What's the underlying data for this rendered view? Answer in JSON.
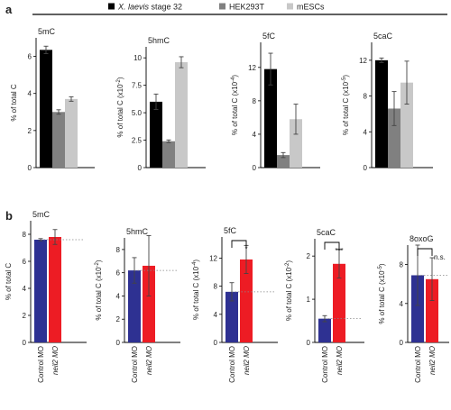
{
  "panel_labels": {
    "a": "a",
    "b": "b"
  },
  "legend": [
    {
      "parts": [
        {
          "t": "X. laevis",
          "italic": true
        },
        {
          "t": " stage 32",
          "italic": false
        }
      ],
      "color": "#000000"
    },
    {
      "parts": [
        {
          "t": "HEK293T",
          "italic": false
        }
      ],
      "color": "#808080"
    },
    {
      "parts": [
        {
          "t": "mESCs",
          "italic": false
        }
      ],
      "color": "#c8c8c8"
    }
  ],
  "chart_data": [
    {
      "type": "bar",
      "panel": "a",
      "title": "5mC",
      "ylabel": [
        {
          "t": "% of total C"
        }
      ],
      "categories": [
        "X. laevis stage 32",
        "HEK293T",
        "mESCs"
      ],
      "values": [
        6.35,
        3.0,
        3.7
      ],
      "errors": [
        0.2,
        0.12,
        0.12
      ],
      "colors": [
        "#000000",
        "#808080",
        "#c8c8c8"
      ],
      "ylim": [
        0,
        7
      ],
      "yticks": [
        0,
        2,
        4,
        6
      ],
      "ytick_labels": [
        "0",
        "2",
        "4",
        "6"
      ]
    },
    {
      "type": "bar",
      "panel": "a",
      "title": "5hmC",
      "ylabel": [
        {
          "t": "% of total C (x10"
        },
        {
          "t": "-2",
          "sup": true
        },
        {
          "t": ")"
        }
      ],
      "categories": [
        "X. laevis stage 32",
        "HEK293T",
        "mESCs"
      ],
      "values": [
        6.0,
        2.4,
        9.6
      ],
      "errors": [
        0.7,
        0.12,
        0.5
      ],
      "colors": [
        "#000000",
        "#808080",
        "#c8c8c8"
      ],
      "ylim": [
        0,
        11
      ],
      "yticks": [
        0,
        2.5,
        5,
        7.5,
        10
      ],
      "ytick_labels": [
        "0",
        "2.5",
        "5.0",
        "7.5",
        "10"
      ]
    },
    {
      "type": "bar",
      "panel": "a",
      "title": "5fC",
      "ylabel": [
        {
          "t": "% of total C (x10"
        },
        {
          "t": "-4",
          "sup": true
        },
        {
          "t": ")"
        }
      ],
      "categories": [
        "X. laevis stage 32",
        "HEK293T",
        "mESCs"
      ],
      "values": [
        11.8,
        1.5,
        5.8
      ],
      "errors": [
        1.9,
        0.3,
        1.8
      ],
      "colors": [
        "#000000",
        "#808080",
        "#c8c8c8"
      ],
      "ylim": [
        0,
        15
      ],
      "yticks": [
        0,
        4,
        8,
        12
      ],
      "ytick_labels": [
        "0",
        "4",
        "8",
        "12"
      ]
    },
    {
      "type": "bar",
      "panel": "a",
      "title": "5caC",
      "ylabel": [
        {
          "t": "% of total C (x10"
        },
        {
          "t": "-5",
          "sup": true
        },
        {
          "t": ")"
        }
      ],
      "categories": [
        "X. laevis stage 32",
        "HEK293T",
        "mESCs"
      ],
      "values": [
        12.0,
        6.6,
        9.5
      ],
      "errors": [
        0.25,
        1.9,
        2.4
      ],
      "colors": [
        "#000000",
        "#808080",
        "#c8c8c8"
      ],
      "ylim": [
        0,
        14
      ],
      "yticks": [
        0,
        4,
        8,
        12
      ],
      "ytick_labels": [
        "0",
        "4",
        "8",
        "12"
      ]
    },
    {
      "type": "bar",
      "panel": "b",
      "title": "5mC",
      "ylabel": [
        {
          "t": "% of total C"
        }
      ],
      "categories": [
        "Control MO",
        "neil2 MO"
      ],
      "category_italic": [
        false,
        true
      ],
      "values": [
        7.6,
        7.8
      ],
      "errors": [
        0.08,
        0.55
      ],
      "colors": [
        "#2e3192",
        "#ed1c24"
      ],
      "ylim": [
        0,
        9
      ],
      "yticks": [
        0,
        2,
        4,
        6,
        8
      ],
      "ytick_labels": [
        "0",
        "2",
        "4",
        "6",
        "8"
      ]
    },
    {
      "type": "bar",
      "panel": "b",
      "title": "5hmC",
      "ylabel": [
        {
          "t": "% of total C (x10"
        },
        {
          "t": "-2",
          "sup": true
        },
        {
          "t": ")"
        }
      ],
      "categories": [
        "Control MO",
        "neil2 MO"
      ],
      "category_italic": [
        false,
        true
      ],
      "values": [
        6.2,
        6.6
      ],
      "errors": [
        1.1,
        2.6
      ],
      "colors": [
        "#2e3192",
        "#ed1c24"
      ],
      "ylim": [
        0,
        9
      ],
      "yticks": [
        0,
        2,
        4,
        6,
        8
      ],
      "ytick_labels": [
        "0",
        "2",
        "4",
        "6",
        "8"
      ]
    },
    {
      "type": "bar",
      "panel": "b",
      "title": "5fC",
      "ylabel": [
        {
          "t": "% of total C (x10"
        },
        {
          "t": "-4",
          "sup": true
        },
        {
          "t": ")"
        }
      ],
      "categories": [
        "Control MO",
        "neil2 MO"
      ],
      "category_italic": [
        false,
        true
      ],
      "values": [
        7.2,
        11.8
      ],
      "errors": [
        1.3,
        2.0
      ],
      "colors": [
        "#2e3192",
        "#ed1c24"
      ],
      "ylim": [
        0,
        15
      ],
      "yticks": [
        0,
        4,
        8,
        12
      ],
      "ytick_labels": [
        "0",
        "4",
        "8",
        "12"
      ],
      "significance": "*"
    },
    {
      "type": "bar",
      "panel": "b",
      "title": "5caC",
      "ylabel": [
        {
          "t": "% of total C (x10"
        },
        {
          "t": "-2",
          "sup": true
        },
        {
          "t": ")"
        }
      ],
      "categories": [
        "Control MO",
        "neil2 MO"
      ],
      "category_italic": [
        false,
        true
      ],
      "values": [
        0.55,
        1.82
      ],
      "errors": [
        0.07,
        0.33
      ],
      "colors": [
        "#2e3192",
        "#ed1c24"
      ],
      "ylim": [
        0,
        2.4
      ],
      "yticks": [
        0,
        1,
        2
      ],
      "ytick_labels": [
        "0",
        "1",
        "2"
      ],
      "significance": "***"
    },
    {
      "type": "bar",
      "panel": "b",
      "title": "8oxoG",
      "ylabel": [
        {
          "t": "% of total C (x10"
        },
        {
          "t": "-5",
          "sup": true
        },
        {
          "t": ")"
        }
      ],
      "categories": [
        "Control MO",
        "neil2 MO"
      ],
      "category_italic": [
        false,
        true
      ],
      "values": [
        6.9,
        6.5
      ],
      "errors": [
        3.1,
        2.2
      ],
      "colors": [
        "#2e3192",
        "#ed1c24"
      ],
      "ylim": [
        0,
        10
      ],
      "yticks": [
        0,
        4,
        8
      ],
      "ytick_labels": [
        "0",
        "4",
        "8"
      ],
      "significance": "n.s."
    }
  ]
}
